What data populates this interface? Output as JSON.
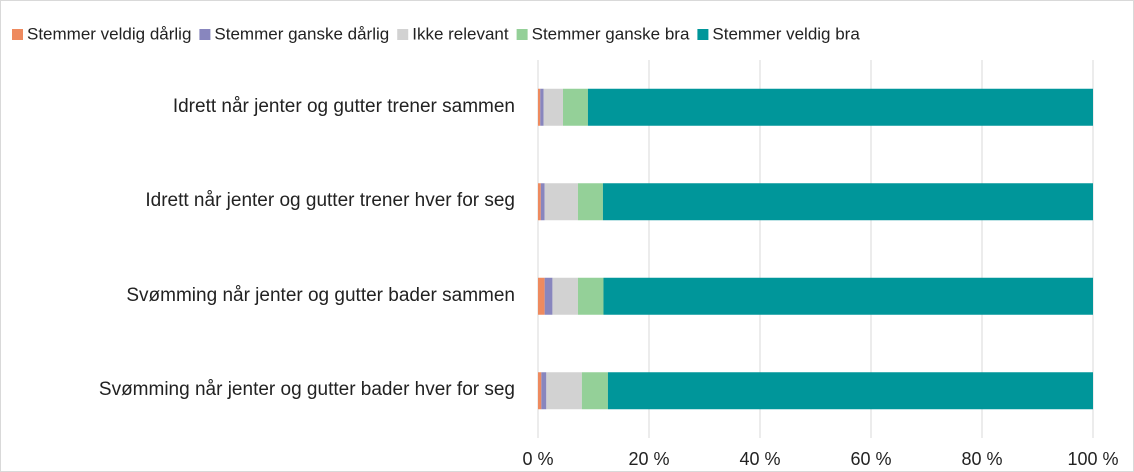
{
  "chart_data": {
    "type": "stacked-bar-horizontal",
    "categories": [
      "Idrett når jenter og gutter trener sammen",
      "Idrett når jenter og gutter trener hver for seg",
      "Svømming når jenter og gutter bader sammen",
      "Svømming når jenter og gutter bader hver for seg"
    ],
    "series": [
      {
        "name": "Stemmer veldig dårlig",
        "color": "#ee8a5f",
        "values": [
          0.4,
          0.5,
          1.2,
          0.6
        ]
      },
      {
        "name": "Stemmer ganske dårlig",
        "color": "#8886be",
        "values": [
          0.6,
          0.7,
          1.4,
          0.9
        ]
      },
      {
        "name": "Ikke relevant",
        "color": "#d2d2d2",
        "values": [
          3.5,
          6.0,
          4.6,
          6.4
        ]
      },
      {
        "name": "Stemmer ganske bra",
        "color": "#94d098",
        "values": [
          4.5,
          4.5,
          4.6,
          4.7
        ]
      },
      {
        "name": "Stemmer veldig bra",
        "color": "#00969a",
        "values": [
          91.0,
          88.3,
          88.2,
          87.4
        ]
      }
    ],
    "xlim": [
      0,
      100
    ],
    "xticks": [
      {
        "value": 0,
        "label": "0 %"
      },
      {
        "value": 20,
        "label": "20 %"
      },
      {
        "value": 40,
        "label": "40 %"
      },
      {
        "value": 60,
        "label": "60 %"
      },
      {
        "value": 80,
        "label": "80 %"
      },
      {
        "value": 100,
        "label": "100 %"
      }
    ],
    "grid": true,
    "legend": "top"
  }
}
